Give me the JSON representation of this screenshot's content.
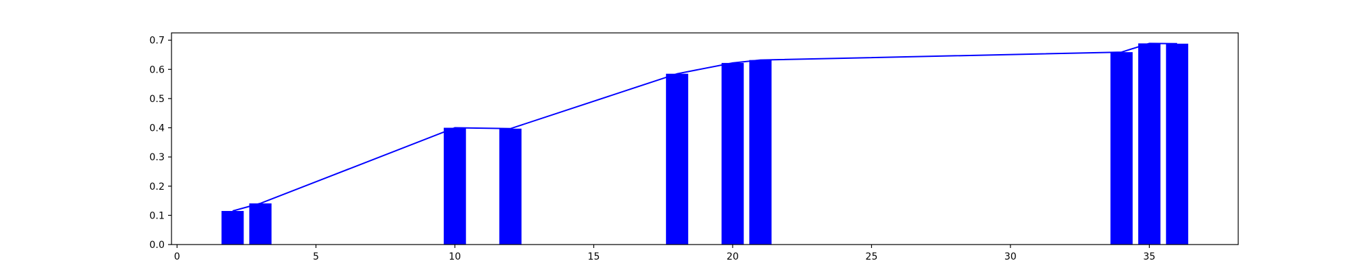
{
  "chart_data": {
    "type": "bar",
    "x": [
      2,
      3,
      10,
      12,
      18,
      20,
      21,
      34,
      35,
      36
    ],
    "values": [
      0.115,
      0.141,
      0.4,
      0.397,
      0.585,
      0.622,
      0.632,
      0.659,
      0.689,
      0.688
    ],
    "line_values": [
      0.115,
      0.141,
      0.4,
      0.397,
      0.585,
      0.622,
      0.632,
      0.659,
      0.689,
      0.688
    ],
    "bar_width": 0.8,
    "title": "",
    "xlabel": "",
    "ylabel": "",
    "xlim": [
      -0.2,
      38.2
    ],
    "ylim": [
      0.0,
      0.725
    ],
    "xticks": [
      0,
      5,
      10,
      15,
      20,
      25,
      30,
      35
    ],
    "yticks": [
      0.0,
      0.1,
      0.2,
      0.3,
      0.4,
      0.5,
      0.6,
      0.7
    ],
    "ytick_labels": [
      "0.0",
      "0.1",
      "0.2",
      "0.3",
      "0.4",
      "0.5",
      "0.6",
      "0.7"
    ],
    "grid": false,
    "colors": {
      "bar": "#0000ff",
      "line": "#0000ff",
      "axes": "#000000"
    }
  }
}
